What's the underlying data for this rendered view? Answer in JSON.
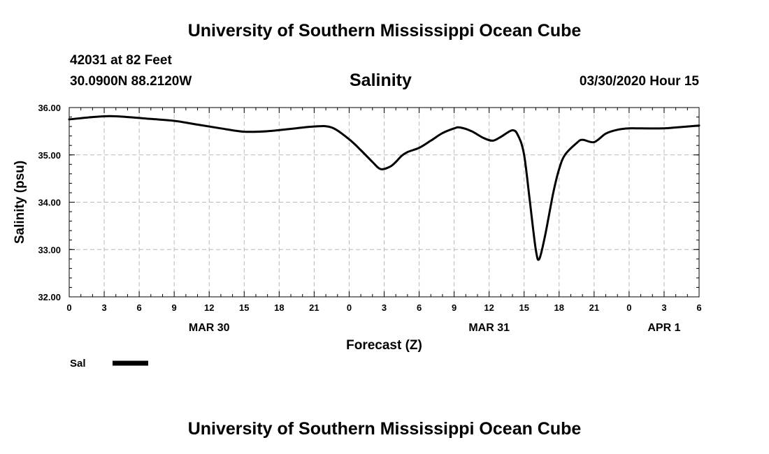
{
  "header": {
    "top_title": "University of Southern Mississippi Ocean Cube",
    "station": "42031 at 82 Feet",
    "coords": "30.0900N 88.2120W",
    "run_time": "03/30/2020 Hour 15"
  },
  "footer": {
    "bottom_title": "University of Southern Mississippi Ocean Cube"
  },
  "chart_data": {
    "type": "line",
    "title": "Salinity",
    "xlabel": "Forecast (Z)",
    "ylabel": "Salinity (psu)",
    "xlim": [
      0,
      54
    ],
    "ylim": [
      32,
      36
    ],
    "grid": true,
    "x_ticks": [
      {
        "x": 0,
        "label": "0"
      },
      {
        "x": 3,
        "label": "3"
      },
      {
        "x": 6,
        "label": "6"
      },
      {
        "x": 9,
        "label": "9"
      },
      {
        "x": 12,
        "label": "12"
      },
      {
        "x": 15,
        "label": "15"
      },
      {
        "x": 18,
        "label": "18"
      },
      {
        "x": 21,
        "label": "21"
      },
      {
        "x": 24,
        "label": "0"
      },
      {
        "x": 27,
        "label": "3"
      },
      {
        "x": 30,
        "label": "6"
      },
      {
        "x": 33,
        "label": "9"
      },
      {
        "x": 36,
        "label": "12"
      },
      {
        "x": 39,
        "label": "15"
      },
      {
        "x": 42,
        "label": "18"
      },
      {
        "x": 45,
        "label": "21"
      },
      {
        "x": 48,
        "label": "0"
      },
      {
        "x": 51,
        "label": "3"
      },
      {
        "x": 54,
        "label": "6"
      }
    ],
    "date_labels": [
      {
        "x": 12,
        "label": "MAR 30"
      },
      {
        "x": 36,
        "label": "MAR 31"
      },
      {
        "x": 51,
        "label": "APR 1"
      }
    ],
    "y_ticks": [
      {
        "y": 32,
        "label": "32.00"
      },
      {
        "y": 33,
        "label": "33.00"
      },
      {
        "y": 34,
        "label": "34.00"
      },
      {
        "y": 35,
        "label": "35.00"
      },
      {
        "y": 36,
        "label": "36.00"
      }
    ],
    "series": [
      {
        "name": "Sal",
        "color": "#000000",
        "points": [
          [
            0,
            35.75
          ],
          [
            2,
            35.8
          ],
          [
            3.5,
            35.82
          ],
          [
            5,
            35.8
          ],
          [
            7,
            35.76
          ],
          [
            9,
            35.72
          ],
          [
            11,
            35.64
          ],
          [
            13,
            35.56
          ],
          [
            15,
            35.49
          ],
          [
            17,
            35.5
          ],
          [
            19,
            35.55
          ],
          [
            21,
            35.6
          ],
          [
            22.5,
            35.58
          ],
          [
            24,
            35.33
          ],
          [
            25,
            35.1
          ],
          [
            26,
            34.85
          ],
          [
            26.7,
            34.7
          ],
          [
            27.5,
            34.75
          ],
          [
            28,
            34.85
          ],
          [
            28.5,
            34.98
          ],
          [
            29,
            35.06
          ],
          [
            30,
            35.15
          ],
          [
            31,
            35.3
          ],
          [
            32,
            35.46
          ],
          [
            33,
            35.56
          ],
          [
            33.5,
            35.58
          ],
          [
            34.5,
            35.5
          ],
          [
            35.5,
            35.36
          ],
          [
            36.3,
            35.3
          ],
          [
            37,
            35.38
          ],
          [
            38,
            35.52
          ],
          [
            38.5,
            35.4
          ],
          [
            39,
            35.0
          ],
          [
            39.5,
            34.0
          ],
          [
            40,
            33.0
          ],
          [
            40.3,
            32.8
          ],
          [
            40.8,
            33.3
          ],
          [
            41.5,
            34.2
          ],
          [
            42,
            34.7
          ],
          [
            42.5,
            35.0
          ],
          [
            43.5,
            35.25
          ],
          [
            44,
            35.32
          ],
          [
            45,
            35.27
          ],
          [
            46,
            35.45
          ],
          [
            47,
            35.53
          ],
          [
            48,
            35.56
          ],
          [
            49,
            35.56
          ],
          [
            51,
            35.56
          ],
          [
            52,
            35.58
          ],
          [
            54,
            35.62
          ]
        ]
      }
    ],
    "legend": {
      "position": "bottom-left",
      "label": "Sal"
    }
  }
}
